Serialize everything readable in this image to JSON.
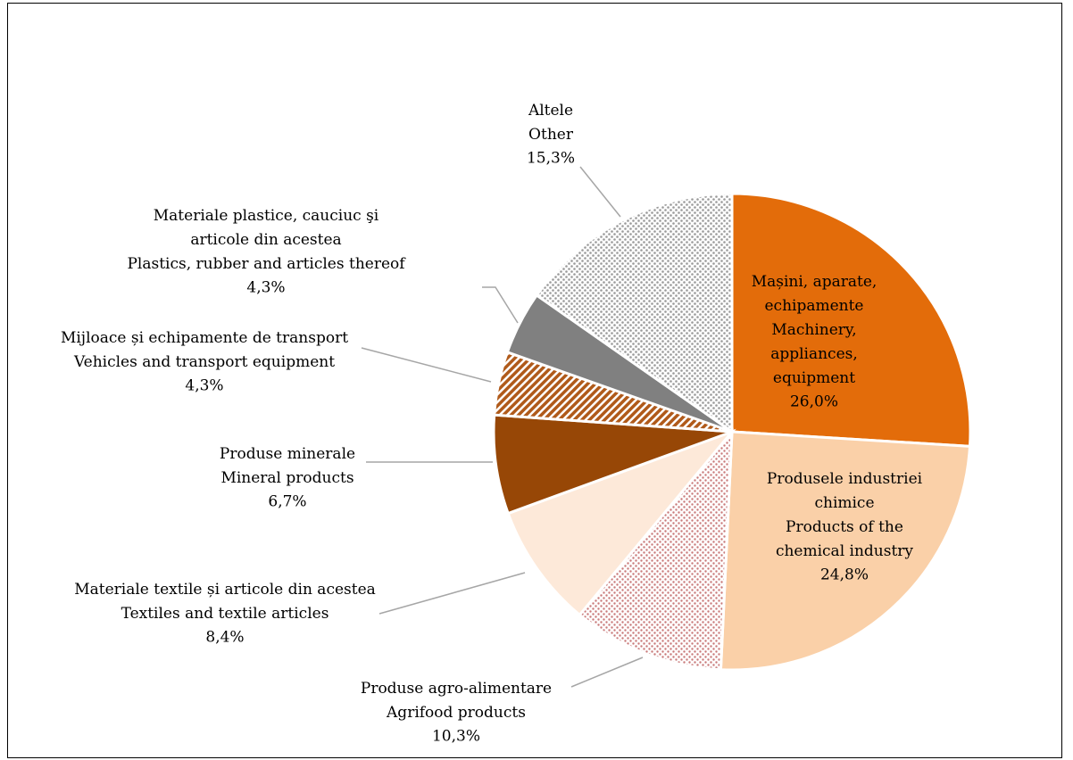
{
  "chart_data": {
    "type": "pie",
    "categories": [
      "Mașini, aparate,\nechipamente\nMachinery,\nappliances,\nequipment",
      "Produsele industriei\nchimice\nProducts of the\nchemical industry",
      "Produse agro-alimentare\nAgrifood products",
      "Materiale textile și articole din acestea\nTextiles and textile articles",
      "Produse minerale\nMineral products",
      "Mijloace și echipamente de transport\nVehicles and transport equipment",
      "Materiale plastice, cauciuc şi\narticole din acestea\nPlastics, rubber and articles thereof",
      "Altele\nOther"
    ],
    "values": [
      26.0,
      24.8,
      10.3,
      8.4,
      6.7,
      4.3,
      4.3,
      15.3
    ],
    "value_labels": [
      "26,0%",
      "24,8%",
      "10,3%",
      "8,4%",
      "6,7%",
      "4,3%",
      "4,3%",
      "15,3%"
    ],
    "colors": [
      "#e36c0a",
      "#fad0a8",
      "#e6bcbc",
      "#fde9d9",
      "#974706",
      "#c0712b",
      "#808080",
      "#cfcfcf"
    ]
  }
}
